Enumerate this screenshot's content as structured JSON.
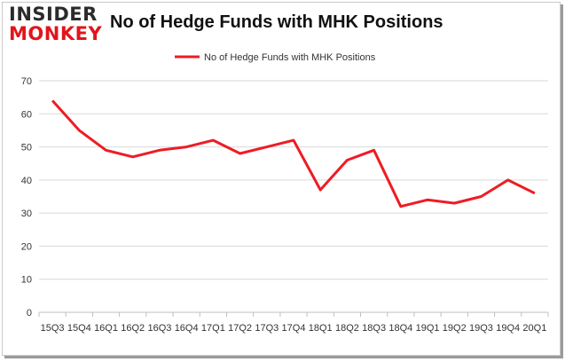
{
  "logo": {
    "line1": "INSIDER",
    "line2": "MONKEY"
  },
  "chart_data": {
    "type": "line",
    "title": "No of Hedge Funds with MHK Positions",
    "xlabel": "",
    "ylabel": "",
    "categories": [
      "15Q3",
      "15Q4",
      "16Q1",
      "16Q2",
      "16Q3",
      "16Q4",
      "17Q1",
      "17Q2",
      "17Q3",
      "17Q4",
      "18Q1",
      "18Q2",
      "18Q3",
      "18Q4",
      "19Q1",
      "19Q2",
      "19Q3",
      "19Q4",
      "20Q1"
    ],
    "series": [
      {
        "name": "No of Hedge Funds with MHK Positions",
        "values": [
          64,
          55,
          49,
          47,
          49,
          50,
          52,
          48,
          50,
          52,
          37,
          46,
          49,
          32,
          34,
          33,
          35,
          40,
          36
        ]
      }
    ],
    "ylim": [
      0,
      70
    ],
    "yticks": [
      0,
      10,
      20,
      30,
      40,
      50,
      60,
      70
    ],
    "grid": true,
    "legend": "top-center",
    "line_color": "#ee1c25",
    "grid_color": "#d9d9d9"
  }
}
